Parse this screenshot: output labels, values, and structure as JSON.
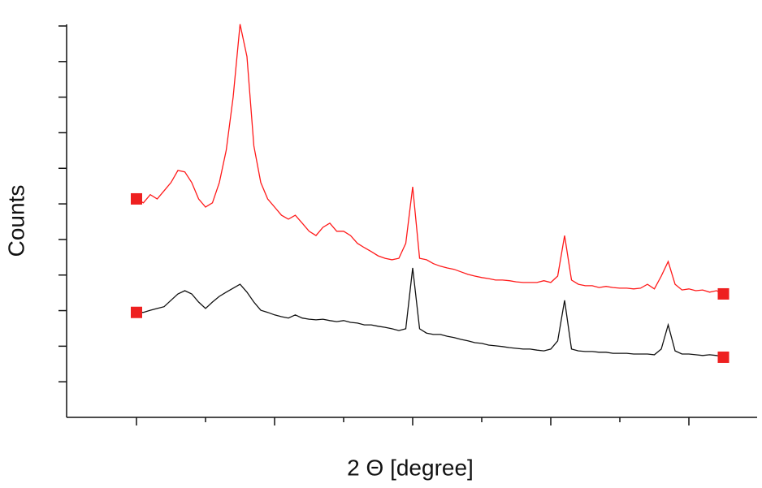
{
  "chart_data": {
    "type": "line",
    "xlabel": "2 Θ [degree]",
    "ylabel": "Counts",
    "xlim": [
      0,
      10
    ],
    "ylim": [
      0,
      11
    ],
    "xticks": [
      1,
      2,
      3,
      4,
      5,
      6,
      7,
      8,
      9
    ],
    "yticks": [
      1,
      2,
      3,
      4,
      5,
      6,
      7,
      8,
      9,
      10,
      11
    ],
    "marker_color": "#ee2020",
    "x": [
      1.0,
      1.1,
      1.2,
      1.3,
      1.4,
      1.5,
      1.6,
      1.7,
      1.8,
      1.9,
      2.0,
      2.1,
      2.2,
      2.3,
      2.4,
      2.5,
      2.6,
      2.7,
      2.8,
      2.9,
      3.0,
      3.1,
      3.2,
      3.3,
      3.4,
      3.5,
      3.6,
      3.7,
      3.8,
      3.9,
      4.0,
      4.1,
      4.2,
      4.3,
      4.4,
      4.5,
      4.6,
      4.7,
      4.8,
      4.9,
      5.0,
      5.1,
      5.2,
      5.3,
      5.4,
      5.5,
      5.6,
      5.7,
      5.8,
      5.9,
      6.0,
      6.1,
      6.2,
      6.3,
      6.4,
      6.5,
      6.6,
      6.7,
      6.8,
      6.9,
      7.0,
      7.1,
      7.2,
      7.3,
      7.4,
      7.5,
      7.6,
      7.7,
      7.8,
      7.9,
      8.0,
      8.1,
      8.2,
      8.3,
      8.4,
      8.5,
      8.6,
      8.7,
      8.8,
      8.9,
      9.0,
      9.1,
      9.2,
      9.3,
      9.4,
      9.5
    ],
    "series": [
      {
        "color": "#ff1a1a",
        "values": [
          6.14,
          6.03,
          6.26,
          6.14,
          6.37,
          6.6,
          6.94,
          6.9,
          6.6,
          6.14,
          5.91,
          6.03,
          6.6,
          7.51,
          9.0,
          11.05,
          10.14,
          7.63,
          6.6,
          6.14,
          5.91,
          5.68,
          5.57,
          5.68,
          5.46,
          5.23,
          5.11,
          5.34,
          5.46,
          5.23,
          5.23,
          5.11,
          4.89,
          4.77,
          4.66,
          4.54,
          4.47,
          4.43,
          4.47,
          4.89,
          6.48,
          4.47,
          4.43,
          4.32,
          4.25,
          4.2,
          4.16,
          4.09,
          4.02,
          3.97,
          3.93,
          3.9,
          3.86,
          3.86,
          3.84,
          3.81,
          3.79,
          3.79,
          3.79,
          3.84,
          3.79,
          3.97,
          5.11,
          3.86,
          3.74,
          3.7,
          3.7,
          3.65,
          3.68,
          3.65,
          3.63,
          3.63,
          3.61,
          3.63,
          3.74,
          3.61,
          3.97,
          4.38,
          3.74,
          3.58,
          3.61,
          3.56,
          3.58,
          3.52,
          3.56,
          3.47
        ]
      },
      {
        "color": "#111111",
        "values": [
          2.95,
          2.95,
          3.01,
          3.06,
          3.11,
          3.29,
          3.47,
          3.56,
          3.47,
          3.24,
          3.06,
          3.24,
          3.4,
          3.52,
          3.63,
          3.74,
          3.52,
          3.24,
          3.01,
          2.95,
          2.88,
          2.83,
          2.79,
          2.88,
          2.79,
          2.76,
          2.74,
          2.76,
          2.72,
          2.69,
          2.72,
          2.67,
          2.65,
          2.6,
          2.6,
          2.56,
          2.53,
          2.49,
          2.44,
          2.49,
          4.2,
          2.49,
          2.37,
          2.33,
          2.33,
          2.28,
          2.24,
          2.19,
          2.15,
          2.1,
          2.08,
          2.03,
          2.01,
          1.99,
          1.96,
          1.94,
          1.92,
          1.92,
          1.89,
          1.87,
          1.92,
          2.15,
          3.29,
          1.92,
          1.87,
          1.85,
          1.85,
          1.83,
          1.83,
          1.8,
          1.8,
          1.8,
          1.78,
          1.78,
          1.78,
          1.76,
          1.92,
          2.6,
          1.87,
          1.78,
          1.78,
          1.76,
          1.74,
          1.76,
          1.74,
          1.69
        ]
      }
    ]
  }
}
